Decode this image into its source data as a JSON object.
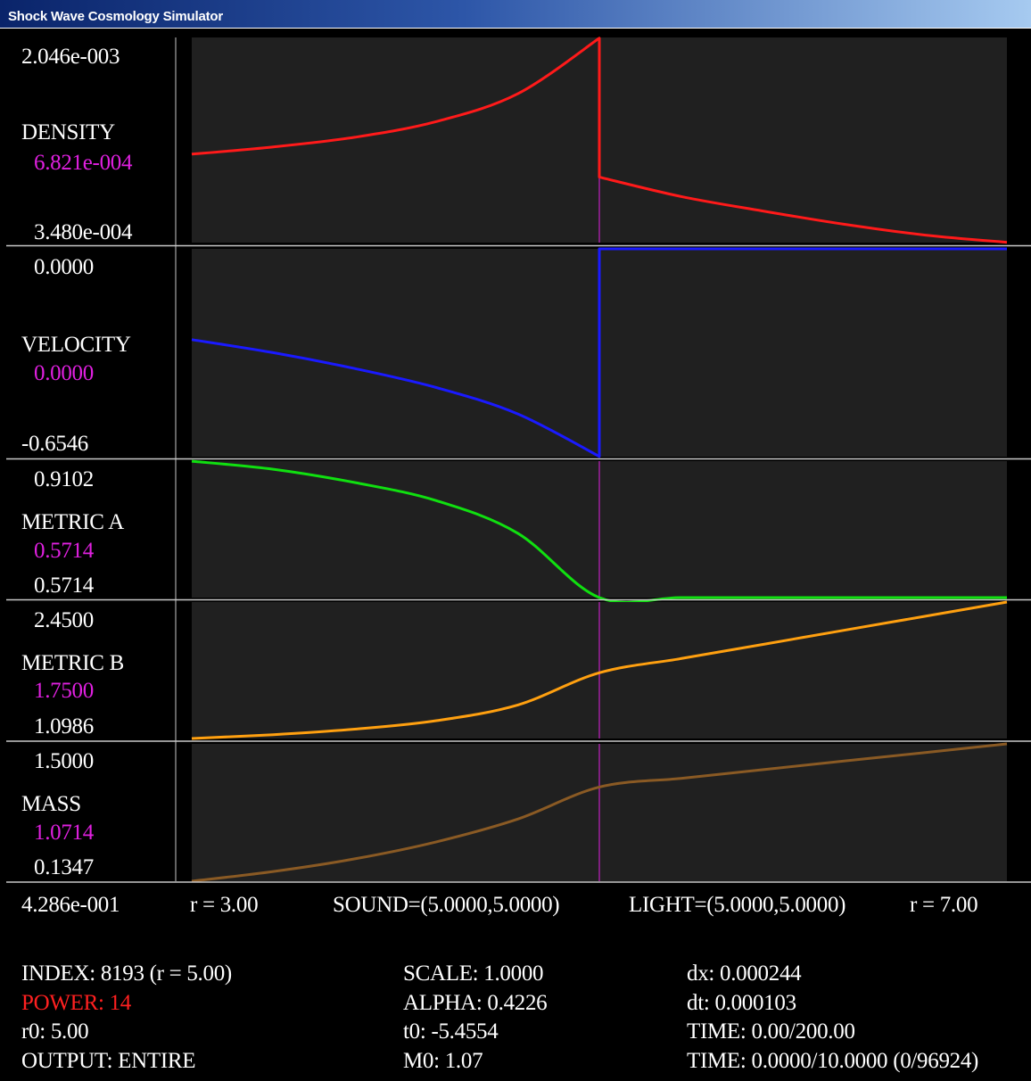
{
  "window": {
    "title": "Shock Wave Cosmology Simulator"
  },
  "colors": {
    "panel_bg": "#202020",
    "divider": "#c8c8c8",
    "shock_line": "#e020e0",
    "density": "#ff1a1a",
    "velocity": "#1a1aff",
    "metric_a": "#10e010",
    "metric_b": "#ffa010",
    "mass": "#8a5a24",
    "current_value": "#e020e0",
    "power": "#ff2020"
  },
  "panels": [
    {
      "name": "DENSITY",
      "max": "2.046e-003",
      "current": "6.821e-004",
      "min": "3.480e-004"
    },
    {
      "name": "VELOCITY",
      "max": "0.0000",
      "current": "0.0000",
      "min": "-0.6546"
    },
    {
      "name": "METRIC A",
      "max": "0.9102",
      "current": "0.5714",
      "min": "0.5714"
    },
    {
      "name": "METRIC B",
      "max": "2.4500",
      "current": "1.7500",
      "min": "1.0986"
    },
    {
      "name": "MASS",
      "max": "1.5000",
      "current": "1.0714",
      "min": "0.1347"
    }
  ],
  "axis": {
    "left_value": "4.286e-001",
    "r_start": "r = 3.00",
    "sound": "SOUND=(5.0000,5.0000)",
    "light": "LIGHT=(5.0000,5.0000)",
    "r_end": "r = 7.00"
  },
  "info": {
    "index": "INDEX: 8193 (r = 5.00)",
    "power": "POWER: 14",
    "r0": "r0: 5.00",
    "output": "OUTPUT: ENTIRE",
    "scale": "SCALE: 1.0000",
    "alpha": "ALPHA: 0.4226",
    "t0": "t0: -5.4554",
    "m0": "M0: 1.07",
    "dx": "dx: 0.000244",
    "dt": "dt: 0.000103",
    "time_steps": "TIME: 0.00/200.00",
    "time_sim": "TIME: 0.0000/10.0000 (0/96924)"
  },
  "chart_data": [
    {
      "type": "line",
      "title": "DENSITY",
      "xlim": [
        3.0,
        7.0
      ],
      "ylim": [
        0.000348,
        0.002046
      ],
      "shock_r": 5.0,
      "series": [
        {
          "name": "DENSITY",
          "x": [
            3.0,
            3.4,
            3.8,
            4.2,
            4.6,
            5.0,
            5.0,
            5.4,
            5.8,
            6.2,
            6.6,
            7.0
          ],
          "values": [
            0.00108,
            0.00114,
            0.00122,
            0.00135,
            0.00158,
            0.00204,
            0.00089,
            0.00073,
            0.00061,
            0.0005,
            0.00041,
            0.00035
          ]
        }
      ]
    },
    {
      "type": "line",
      "title": "VELOCITY",
      "xlim": [
        3.0,
        7.0
      ],
      "ylim": [
        -0.6546,
        0.0
      ],
      "shock_r": 5.0,
      "series": [
        {
          "name": "VELOCITY",
          "x": [
            3.0,
            3.4,
            3.8,
            4.2,
            4.6,
            5.0,
            5.0,
            5.4,
            5.8,
            6.2,
            6.6,
            7.0
          ],
          "values": [
            -0.286,
            -0.327,
            -0.377,
            -0.437,
            -0.52,
            -0.654,
            0.0,
            0.0,
            0.0,
            0.0,
            0.0,
            0.0
          ]
        }
      ]
    },
    {
      "type": "line",
      "title": "METRIC A",
      "xlim": [
        3.0,
        7.0
      ],
      "ylim": [
        0.5714,
        0.9102
      ],
      "shock_r": 5.0,
      "series": [
        {
          "name": "METRIC A",
          "x": [
            3.0,
            3.4,
            3.8,
            4.2,
            4.6,
            5.0,
            5.4,
            5.8,
            6.2,
            6.6,
            7.0
          ],
          "values": [
            0.91,
            0.89,
            0.857,
            0.812,
            0.731,
            0.5714,
            0.5714,
            0.5714,
            0.5714,
            0.5714,
            0.5714
          ]
        }
      ]
    },
    {
      "type": "line",
      "title": "METRIC B",
      "xlim": [
        3.0,
        7.0
      ],
      "ylim": [
        1.0986,
        2.45
      ],
      "shock_r": 5.0,
      "series": [
        {
          "name": "METRIC B",
          "x": [
            3.0,
            3.4,
            3.8,
            4.2,
            4.6,
            5.0,
            5.4,
            5.8,
            6.2,
            6.6,
            7.0
          ],
          "values": [
            1.099,
            1.137,
            1.191,
            1.275,
            1.431,
            1.75,
            1.89,
            2.03,
            2.17,
            2.31,
            2.45
          ]
        }
      ]
    },
    {
      "type": "line",
      "title": "MASS",
      "xlim": [
        3.0,
        7.0
      ],
      "ylim": [
        0.1347,
        1.5
      ],
      "shock_r": 5.0,
      "series": [
        {
          "name": "MASS",
          "x": [
            3.0,
            3.4,
            3.8,
            4.2,
            4.6,
            5.0,
            5.4,
            5.8,
            6.2,
            6.6,
            7.0
          ],
          "values": [
            0.135,
            0.231,
            0.357,
            0.526,
            0.753,
            1.071,
            1.157,
            1.243,
            1.329,
            1.414,
            1.5
          ]
        }
      ]
    }
  ]
}
